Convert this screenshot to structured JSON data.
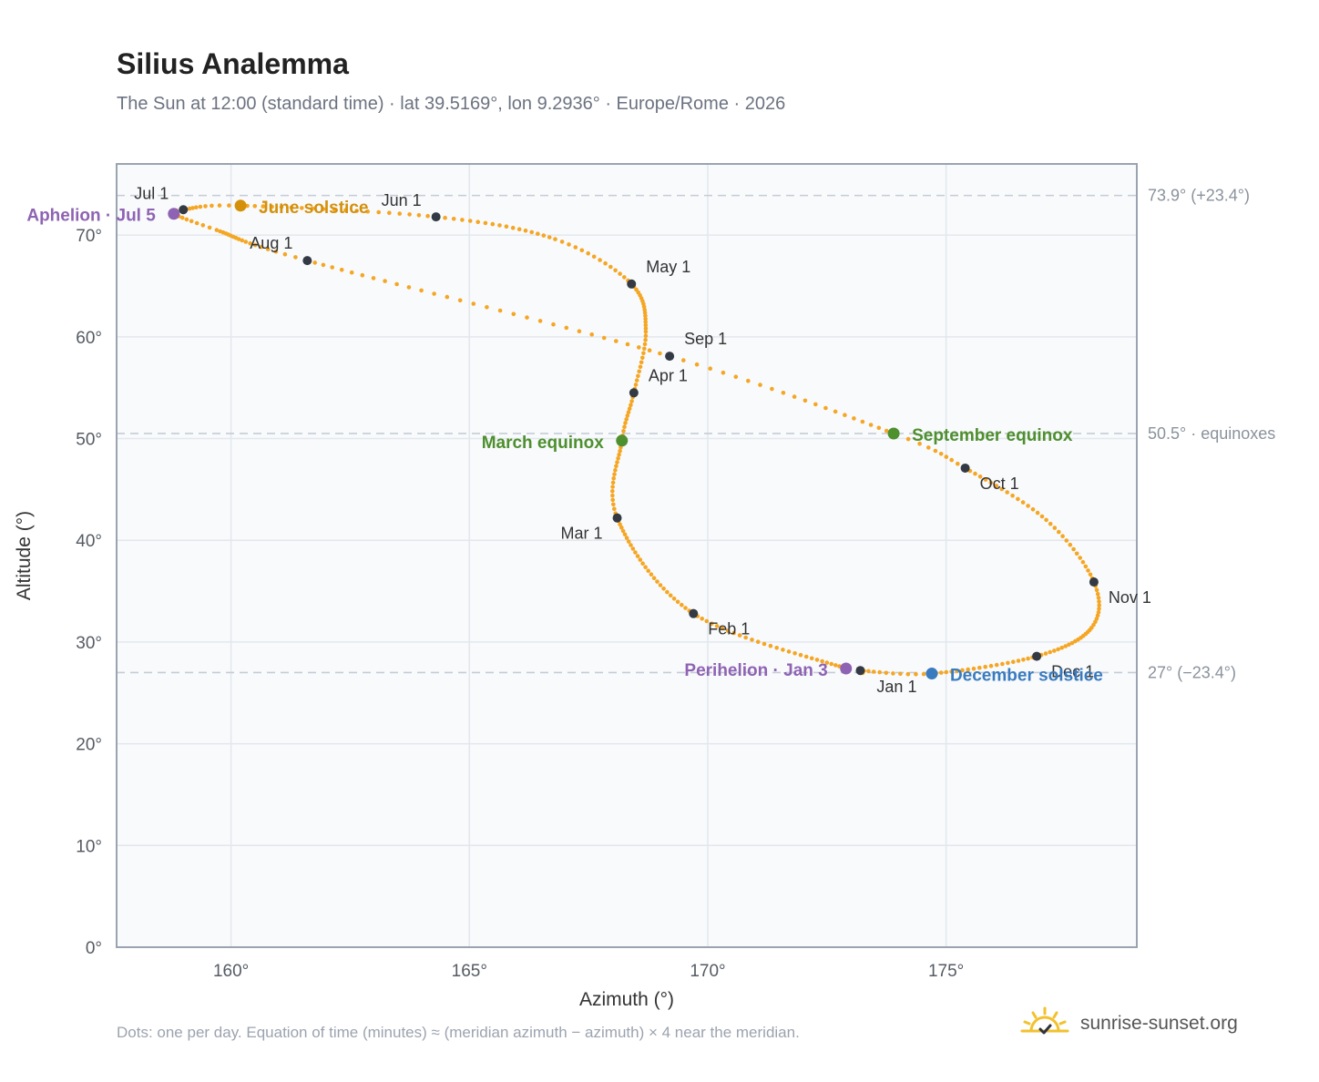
{
  "title": "Silius Analemma",
  "subtitle": "The Sun at 12:00 (standard time) · lat 39.5169°, lon 9.2936° · Europe/Rome · 2026",
  "footnote": "Dots: one per day. Equation of time (minutes) ≈ (meridian azimuth − azimuth) × 4 near the meridian.",
  "brand": {
    "name": "sunrise-sunset.org",
    "logo_icon": "sun-checkmark-icon"
  },
  "colors": {
    "path": "#f5a623",
    "month_marker": "#333a44",
    "june_solstice": "#d4900a",
    "december_solstice": "#3a7bbf",
    "equinox": "#4e8f2e",
    "apsis": "#8e63b3",
    "plot_bg": "#f8fafc",
    "grid": "#e3e7ec",
    "frame": "#9aa3b0",
    "refline": "#c5ccd5",
    "tick_text": "#555b63",
    "right_label": "#8a929c"
  },
  "chart_data": {
    "type": "scatter",
    "xlabel": "Azimuth (°)",
    "ylabel": "Altitude (°)",
    "xlim": [
      157.6,
      179.0
    ],
    "ylim": [
      0,
      77
    ],
    "grid": true,
    "x_ticks": [
      160,
      165,
      170,
      175
    ],
    "x_tick_labels": [
      "160°",
      "165°",
      "170°",
      "175°"
    ],
    "y_ticks": [
      0,
      10,
      20,
      30,
      40,
      50,
      60,
      70
    ],
    "y_tick_labels": [
      "0°",
      "10°",
      "20°",
      "30°",
      "40°",
      "50°",
      "60°",
      "70°"
    ],
    "reference_lines": [
      {
        "y": 73.9,
        "label": "73.9° (+23.4°)"
      },
      {
        "y": 50.5,
        "label": "50.5° · equinoxes"
      },
      {
        "y": 27.0,
        "label": "27° (−23.4°)"
      }
    ],
    "path_knots": [
      {
        "doy": 1,
        "az": 173.2,
        "alt": 27.2
      },
      {
        "doy": 3,
        "az": 172.9,
        "alt": 27.4
      },
      {
        "doy": 32,
        "az": 169.7,
        "alt": 32.8
      },
      {
        "doy": 60,
        "az": 168.1,
        "alt": 42.2
      },
      {
        "doy": 79,
        "az": 168.2,
        "alt": 49.8
      },
      {
        "doy": 91,
        "az": 168.45,
        "alt": 54.5
      },
      {
        "doy": 105,
        "az": 168.7,
        "alt": 60.5
      },
      {
        "doy": 121,
        "az": 168.4,
        "alt": 65.2
      },
      {
        "doy": 135,
        "az": 166.8,
        "alt": 69.6
      },
      {
        "doy": 152,
        "az": 164.3,
        "alt": 71.8
      },
      {
        "doy": 172,
        "az": 160.2,
        "alt": 72.9
      },
      {
        "doy": 182,
        "az": 159.0,
        "alt": 72.5
      },
      {
        "doy": 186,
        "az": 158.8,
        "alt": 72.1
      },
      {
        "doy": 195,
        "az": 159.7,
        "alt": 70.5
      },
      {
        "doy": 213,
        "az": 161.6,
        "alt": 67.5
      },
      {
        "doy": 244,
        "az": 169.2,
        "alt": 58.1
      },
      {
        "doy": 265,
        "az": 173.9,
        "alt": 50.5
      },
      {
        "doy": 274,
        "az": 175.4,
        "alt": 47.1
      },
      {
        "doy": 290,
        "az": 177.1,
        "alt": 42.0
      },
      {
        "doy": 305,
        "az": 178.1,
        "alt": 35.9
      },
      {
        "doy": 318,
        "az": 178.05,
        "alt": 31.4
      },
      {
        "doy": 335,
        "az": 176.9,
        "alt": 28.6
      },
      {
        "doy": 355,
        "az": 174.7,
        "alt": 26.9
      },
      {
        "doy": 366,
        "az": 173.2,
        "alt": 27.2
      }
    ],
    "month_markers": [
      {
        "label": "Jan 1",
        "az": 173.2,
        "alt": 27.2,
        "anchor": "middle",
        "dx": 40,
        "dy": 24
      },
      {
        "label": "Feb 1",
        "az": 169.7,
        "alt": 32.8,
        "anchor": "start",
        "dx": 16,
        "dy": 23
      },
      {
        "label": "Mar 1",
        "az": 168.1,
        "alt": 42.2,
        "anchor": "end",
        "dx": -16,
        "dy": 23
      },
      {
        "label": "Apr 1",
        "az": 168.45,
        "alt": 54.5,
        "anchor": "start",
        "dx": 16,
        "dy": -13
      },
      {
        "label": "May 1",
        "az": 168.4,
        "alt": 65.2,
        "anchor": "start",
        "dx": 16,
        "dy": -13
      },
      {
        "label": "Jun 1",
        "az": 164.3,
        "alt": 71.8,
        "anchor": "end",
        "dx": -16,
        "dy": -12
      },
      {
        "label": "Jul 1",
        "az": 159.0,
        "alt": 72.5,
        "anchor": "end",
        "dx": -16,
        "dy": -12
      },
      {
        "label": "Aug 1",
        "az": 161.6,
        "alt": 67.5,
        "anchor": "end",
        "dx": -16,
        "dy": -13
      },
      {
        "label": "Sep 1",
        "az": 169.2,
        "alt": 58.1,
        "anchor": "start",
        "dx": 16,
        "dy": -13
      },
      {
        "label": "Oct 1",
        "az": 175.4,
        "alt": 47.1,
        "anchor": "start",
        "dx": 16,
        "dy": 23
      },
      {
        "label": "Nov 1",
        "az": 178.1,
        "alt": 35.9,
        "anchor": "start",
        "dx": 16,
        "dy": 23
      },
      {
        "label": "Dec 1",
        "az": 176.9,
        "alt": 28.6,
        "anchor": "start",
        "dx": 16,
        "dy": 23
      }
    ],
    "events": [
      {
        "label": "June solstice",
        "az": 160.2,
        "alt": 72.9,
        "color": "#d4900a",
        "anchor": "start",
        "dx": 20,
        "dy": 8
      },
      {
        "label": "Aphelion · Jul 5",
        "az": 158.8,
        "alt": 72.1,
        "color": "#8e63b3",
        "anchor": "end",
        "dx": -20,
        "dy": 8
      },
      {
        "label": "March equinox",
        "az": 168.2,
        "alt": 49.8,
        "color": "#4e8f2e",
        "anchor": "end",
        "dx": -20,
        "dy": 8
      },
      {
        "label": "September equinox",
        "az": 173.9,
        "alt": 50.5,
        "color": "#4e8f2e",
        "anchor": "start",
        "dx": 20,
        "dy": 8
      },
      {
        "label": "Perihelion · Jan 3",
        "az": 172.9,
        "alt": 27.4,
        "color": "#8e63b3",
        "anchor": "end",
        "dx": -20,
        "dy": 8
      },
      {
        "label": "December solstice",
        "az": 174.7,
        "alt": 26.9,
        "color": "#3a7bbf",
        "anchor": "start",
        "dx": 20,
        "dy": 8
      }
    ]
  }
}
